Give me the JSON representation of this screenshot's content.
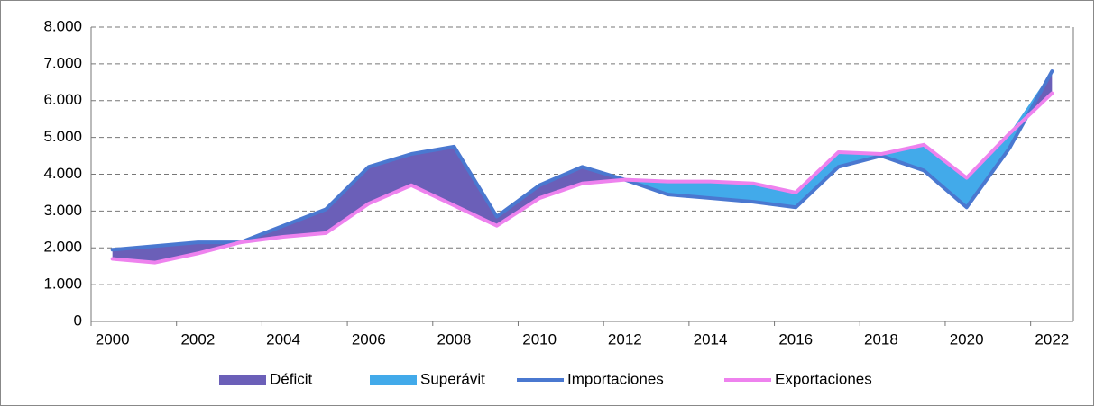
{
  "chart_data": {
    "type": "area-line",
    "categories": [
      "2000",
      null,
      "2002",
      null,
      "2004",
      null,
      "2006",
      null,
      "2008",
      null,
      "2010",
      null,
      "2012",
      null,
      "2014",
      null,
      "2016",
      null,
      "2018",
      null,
      "2020",
      null,
      "2022"
    ],
    "series": [
      {
        "name": "Déficit",
        "color": "#6b5fb8",
        "kind": "area",
        "values": [
          250,
          450,
          300,
          0,
          300,
          650,
          1000,
          850,
          1600,
          250,
          350,
          450,
          0,
          0,
          0,
          0,
          0,
          0,
          0,
          0,
          0,
          0,
          600
        ]
      },
      {
        "name": "Superávit",
        "color": "#42aaea",
        "kind": "area",
        "values": [
          0,
          0,
          0,
          0,
          0,
          0,
          0,
          0,
          0,
          0,
          0,
          0,
          0,
          350,
          450,
          500,
          400,
          400,
          50,
          700,
          800,
          400,
          0
        ]
      },
      {
        "name": "Importaciones",
        "color": "#4a78d0",
        "kind": "line",
        "values": [
          1950,
          2050,
          2150,
          2150,
          2600,
          3050,
          4200,
          4550,
          4750,
          2850,
          3700,
          4200,
          3850,
          3450,
          3350,
          3250,
          3100,
          4200,
          4500,
          4100,
          3100,
          4700,
          6800
        ]
      },
      {
        "name": "Exportaciones",
        "color": "#ee82ee",
        "kind": "line",
        "values": [
          1700,
          1600,
          1850,
          2150,
          2300,
          2400,
          3200,
          3700,
          3150,
          2600,
          3350,
          3750,
          3850,
          3800,
          3800,
          3750,
          3500,
          4600,
          4550,
          4800,
          3900,
          5100,
          6200
        ]
      }
    ],
    "ylim": [
      0,
      8000
    ],
    "yticks": [
      0,
      {
        "value": 1000,
        "label": "1.000"
      },
      {
        "value": 2000,
        "label": "2.000"
      },
      {
        "value": 3000,
        "label": "3.000"
      },
      {
        "value": 4000,
        "label": "4.000"
      },
      {
        "value": 5000,
        "label": "5.000"
      },
      {
        "value": 6000,
        "label": "6.000"
      },
      {
        "value": 7000,
        "label": "7.000"
      },
      {
        "value": 8000,
        "label": "8.000"
      }
    ],
    "grid": true,
    "legend": "bottom"
  }
}
